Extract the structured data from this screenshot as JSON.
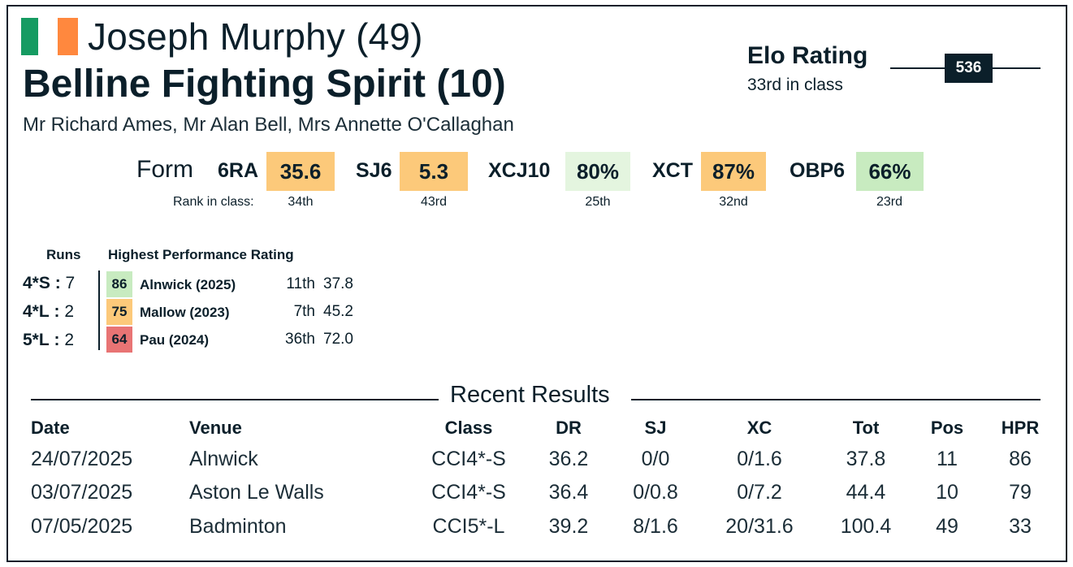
{
  "colors": {
    "dark": "#0b1f2a",
    "orange": "#fcc97a",
    "light_green": "#e4f5df",
    "green": "#c8ebc0",
    "red": "#e87474",
    "flag_green": "#169b62",
    "flag_orange": "#ff883e"
  },
  "header": {
    "rider": "Joseph Murphy (49)",
    "horse": "Belline Fighting Spirit (10)",
    "owners": "Mr Richard Ames, Mr Alan Bell, Mrs Annette O'Callaghan"
  },
  "elo": {
    "title": "Elo Rating",
    "rank": "33rd in class",
    "value": "536"
  },
  "form": {
    "label": "Form",
    "rank_label": "Rank in class:",
    "metrics": [
      {
        "key": "6RA",
        "value": "35.6",
        "rank": "34th",
        "color": "#fcc97a"
      },
      {
        "key": "SJ6",
        "value": "5.3",
        "rank": "43rd",
        "color": "#fcc97a"
      },
      {
        "key": "XCJ10",
        "value": "80%",
        "rank": "25th",
        "color": "#e4f5df"
      },
      {
        "key": "XCT",
        "value": "87%",
        "rank": "32nd",
        "color": "#fcc97a"
      },
      {
        "key": "OBP6",
        "value": "66%",
        "rank": "23rd",
        "color": "#c8ebc0"
      }
    ]
  },
  "hpr": {
    "runs_header": "Runs",
    "hpr_header": "Highest Performance Rating",
    "rows": [
      {
        "level": "4*S",
        "sep": ":",
        "runs": "7",
        "hpr": "86",
        "color": "#c8ebc0",
        "event": "Alnwick (2025)",
        "pos": "11th",
        "score": "37.8"
      },
      {
        "level": "4*L",
        "sep": ":",
        "runs": "2",
        "hpr": "75",
        "color": "#fcc97a",
        "event": "Mallow (2023)",
        "pos": "7th",
        "score": "45.2"
      },
      {
        "level": "5*L",
        "sep": ":",
        "runs": "2",
        "hpr": "64",
        "color": "#e87474",
        "event": "Pau (2024)",
        "pos": "36th",
        "score": "72.0"
      }
    ]
  },
  "results": {
    "title": "Recent Results",
    "columns": [
      "Date",
      "Venue",
      "Class",
      "DR",
      "SJ",
      "XC",
      "Tot",
      "Pos",
      "HPR"
    ],
    "rows": [
      [
        "24/07/2025",
        "Alnwick",
        "CCI4*-S",
        "36.2",
        "0/0",
        "0/1.6",
        "37.8",
        "11",
        "86"
      ],
      [
        "03/07/2025",
        "Aston Le Walls",
        "CCI4*-S",
        "36.4",
        "0/0.8",
        "0/7.2",
        "44.4",
        "10",
        "79"
      ],
      [
        "07/05/2025",
        "Badminton",
        "CCI5*-L",
        "39.2",
        "8/1.6",
        "20/31.6",
        "100.4",
        "49",
        "33"
      ]
    ]
  }
}
